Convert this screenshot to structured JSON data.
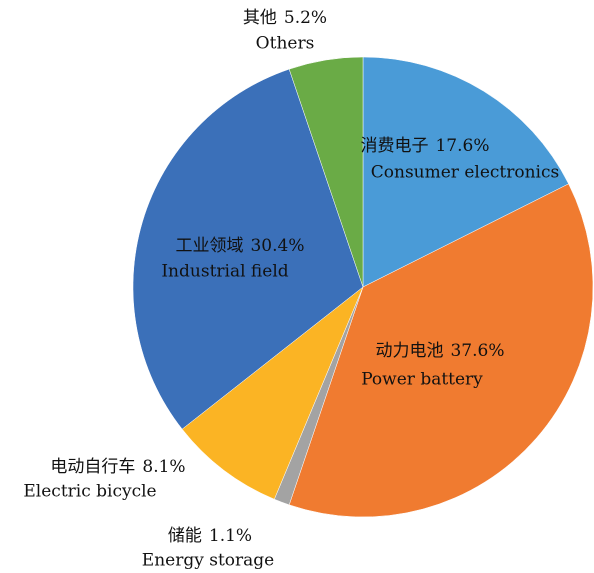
{
  "chart_data": {
    "type": "pie",
    "categories": [
      "消费电子",
      "动力电池",
      "储能",
      "电动自行车",
      "工业领域",
      "其他"
    ],
    "categories_en": [
      "Consumer electronics",
      "Power battery",
      "Energy storage",
      "Electric bicycle",
      "Industrial field",
      "Others"
    ],
    "values": [
      17.6,
      37.6,
      1.1,
      8.1,
      30.4,
      5.2
    ],
    "value_labels": [
      "17.6%",
      "37.6%",
      "1.1%",
      "8.1%",
      "30.4%",
      "5.2%"
    ],
    "colors": [
      "#4a9bd7",
      "#f07b30",
      "#a3a3a3",
      "#fbb424",
      "#3b70b9",
      "#6aab46"
    ]
  }
}
